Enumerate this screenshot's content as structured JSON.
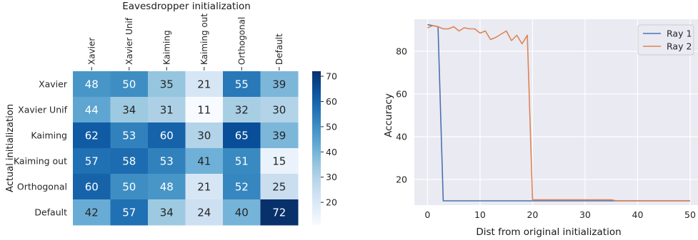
{
  "chart_data": [
    {
      "type": "heatmap",
      "title": "Eavesdropper initialization",
      "xlabel": "",
      "ylabel": "Actual initialization",
      "x_categories": [
        "Xavier",
        "Xavier Unif",
        "Kaiming",
        "Kaiming out",
        "Orthogonal",
        "Default"
      ],
      "y_categories": [
        "Xavier",
        "Xavier Unif",
        "Kaiming",
        "Kaiming out",
        "Orthogonal",
        "Default"
      ],
      "values": [
        [
          48,
          50,
          35,
          21,
          55,
          39
        ],
        [
          44,
          34,
          31,
          11,
          32,
          30
        ],
        [
          62,
          53,
          60,
          30,
          65,
          39
        ],
        [
          57,
          58,
          53,
          41,
          51,
          15
        ],
        [
          60,
          50,
          48,
          21,
          52,
          25
        ],
        [
          42,
          57,
          34,
          24,
          40,
          72
        ]
      ],
      "colormap": "Blues",
      "vmin": 11,
      "vmax": 72,
      "colorbar_ticks": [
        20,
        30,
        40,
        50,
        60,
        70
      ]
    },
    {
      "type": "line",
      "xlabel": "Dist from original initialization",
      "ylabel": "Accuracy",
      "xlim": [
        -2.5,
        51.5
      ],
      "ylim": [
        8,
        95
      ],
      "xticks": [
        0,
        10,
        20,
        30,
        40,
        50
      ],
      "yticks": [
        20,
        40,
        60,
        80
      ],
      "grid": true,
      "legend_position": "top-right",
      "series": [
        {
          "name": "Ray 1",
          "color": "#4c72b0",
          "x": [
            0,
            1,
            2,
            3,
            4,
            5,
            10,
            15,
            20,
            25,
            30,
            35,
            40,
            45,
            50
          ],
          "y": [
            92.5,
            92,
            91.5,
            10,
            10,
            10,
            10,
            10,
            10,
            10,
            10,
            10,
            10,
            10,
            10
          ]
        },
        {
          "name": "Ray 2",
          "color": "#dd8452",
          "x": [
            0,
            1,
            2,
            3,
            4,
            5,
            6,
            7,
            8,
            9,
            10,
            11,
            12,
            13,
            14,
            15,
            16,
            17,
            18,
            19,
            20,
            25,
            30,
            35,
            36,
            40,
            45,
            50
          ],
          "y": [
            91,
            92,
            91.5,
            90.5,
            90.5,
            91.5,
            89.5,
            91,
            90.5,
            90.5,
            88.5,
            89.5,
            85.5,
            86.5,
            88,
            89.5,
            85,
            87.5,
            83.5,
            87.5,
            10.5,
            10.5,
            10.5,
            10.5,
            10,
            10,
            10,
            10
          ]
        }
      ]
    }
  ]
}
